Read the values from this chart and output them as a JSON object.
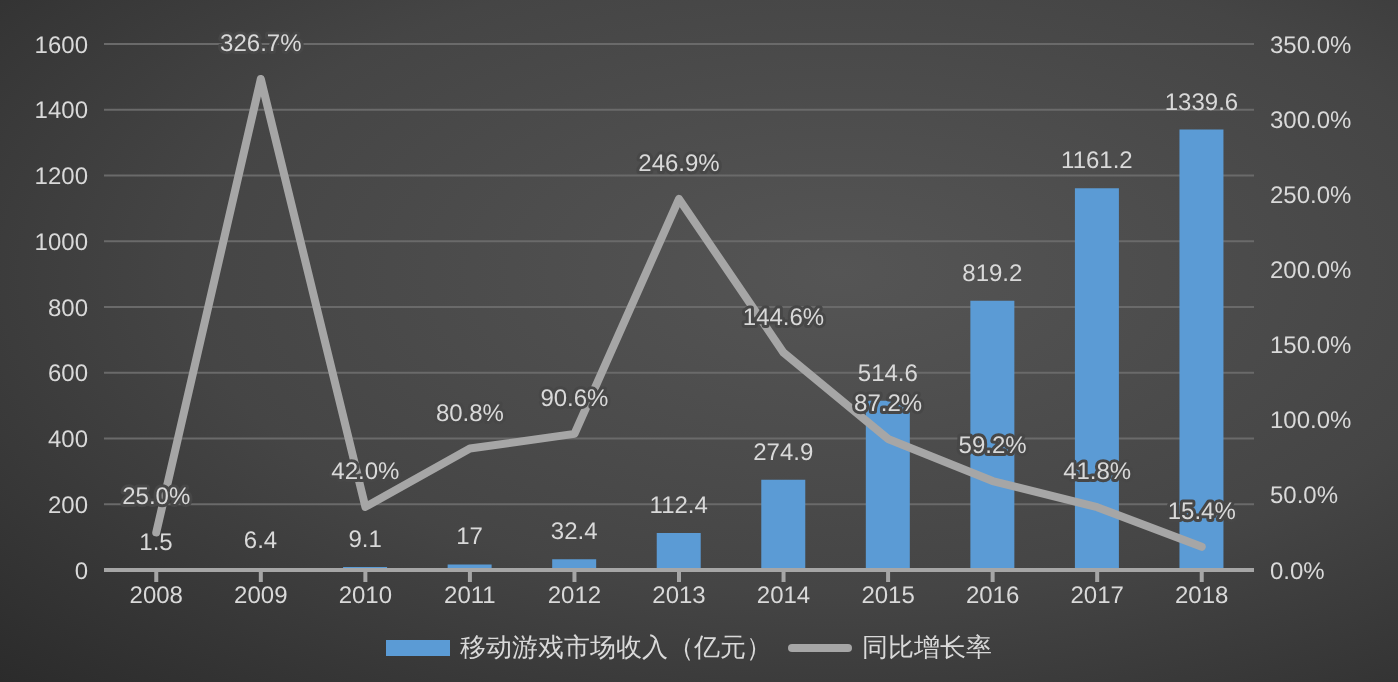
{
  "chart_data": {
    "type": "bar",
    "categories": [
      "2008",
      "2009",
      "2010",
      "2011",
      "2012",
      "2013",
      "2014",
      "2015",
      "2016",
      "2017",
      "2018"
    ],
    "series": [
      {
        "name": "移动游戏市场收入（亿元）",
        "color": "#5b9bd5",
        "values": [
          1.5,
          6.4,
          9.1,
          17,
          32.4,
          112.4,
          274.9,
          514.6,
          819.2,
          1161.2,
          1339.6
        ],
        "value_labels": [
          "1.5",
          "6.4",
          "9.1",
          "17",
          "32.4",
          "112.4",
          "274.9",
          "514.6",
          "819.2",
          "1161.2",
          "1339.6"
        ]
      },
      {
        "name": "同比增长率",
        "type": "line",
        "axis": "y2",
        "color": "#a6a6a6",
        "values": [
          25.0,
          326.7,
          42.0,
          80.8,
          90.6,
          246.9,
          144.6,
          87.2,
          59.2,
          41.8,
          15.4
        ],
        "value_labels": [
          "25.0%",
          "326.7%",
          "42.0%",
          "80.8%",
          "90.6%",
          "246.9%",
          "144.6%",
          "87.2%",
          "59.2%",
          "41.8%",
          "15.4%"
        ]
      }
    ],
    "ylim": [
      0,
      1600
    ],
    "yticks": [
      0,
      200,
      400,
      600,
      800,
      1000,
      1200,
      1400,
      1600
    ],
    "y2lim": [
      0,
      350
    ],
    "y2ticks": [
      {
        "value": 0,
        "label": "0.0%"
      },
      {
        "value": 50,
        "label": "50.0%"
      },
      {
        "value": 100,
        "label": "100.0%"
      },
      {
        "value": 150,
        "label": "150.0%"
      },
      {
        "value": 200,
        "label": "200.0%"
      },
      {
        "value": 250,
        "label": "250.0%"
      },
      {
        "value": 300,
        "label": "300.0%"
      },
      {
        "value": 350,
        "label": "350.0%"
      }
    ],
    "grid": "y",
    "legend": "bottom",
    "marker": "none",
    "line_style": "solid"
  }
}
